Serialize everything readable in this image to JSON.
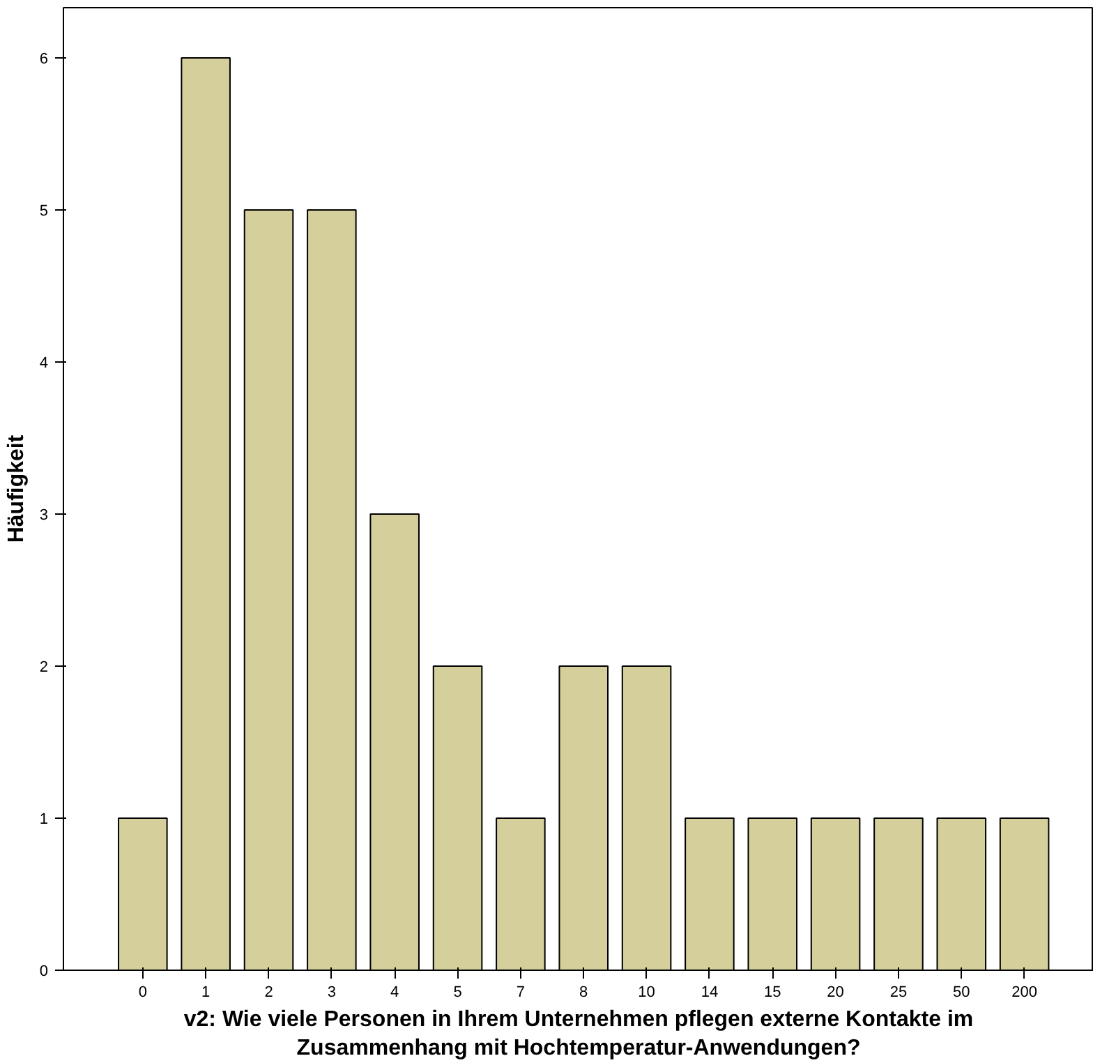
{
  "chart_data": {
    "type": "bar",
    "xlabel": "v2: Wie viele Personen in Ihrem Unternehmen pflegen externe Kontakte im Zusammenhang mit Hochtemperatur-Anwendungen?",
    "ylabel": "Häufigkeit",
    "categories": [
      "0",
      "1",
      "2",
      "3",
      "4",
      "5",
      "7",
      "8",
      "10",
      "14",
      "15",
      "20",
      "25",
      "50",
      "200"
    ],
    "values": [
      1,
      6,
      5,
      5,
      3,
      2,
      1,
      2,
      2,
      1,
      1,
      1,
      1,
      1,
      1
    ],
    "color": "#d4cf9b",
    "ylim": [
      0,
      6.33
    ],
    "yticks": [
      0,
      1,
      2,
      3,
      4,
      5,
      6
    ],
    "grid": false
  }
}
